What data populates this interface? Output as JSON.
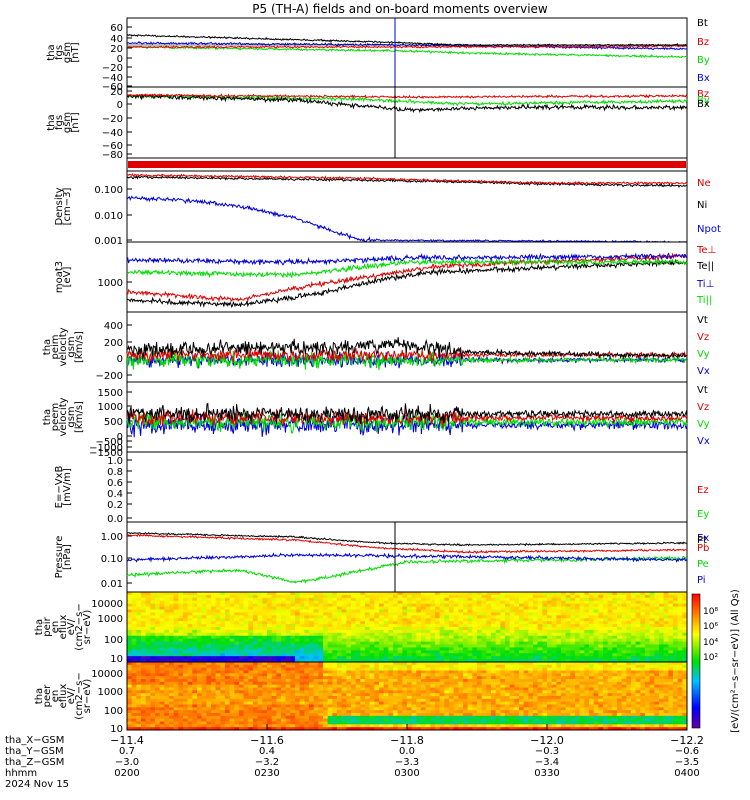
{
  "title": "P5 (TH-A) fields and on-board moments overview",
  "colors": {
    "black": "#000000",
    "red": "#e00000",
    "green": "#00dd00",
    "blue": "#0000dd"
  },
  "panels": [
    {
      "ylabel": [
        "tha",
        "fgs",
        "gsm",
        "[nT]"
      ],
      "ticks": [
        "60",
        "40",
        "20",
        "0",
        "−20",
        "−40",
        "−60"
      ],
      "legend": [
        "Bt",
        "Bz",
        "By",
        "Bx"
      ]
    },
    {
      "ylabel": [
        "tha",
        "fgs",
        "gsm",
        "[nT]"
      ],
      "ticks": [
        "20",
        "0",
        "−20",
        "−40",
        "−60",
        "−80"
      ],
      "legend": [
        "Bz",
        "By",
        "Bx"
      ]
    },
    {
      "ylabel": [],
      "ticks": [],
      "legend": []
    },
    {
      "ylabel": [
        "Density",
        "[cm−3]"
      ],
      "ticks": [
        "0.100",
        "0.010",
        "0.001"
      ],
      "legend": [
        "Ne",
        "Ni",
        "Npot"
      ]
    },
    {
      "ylabel": [
        "moat3",
        "[eV]"
      ],
      "ticks": [
        "1000"
      ],
      "legend": [
        "Te⊥",
        "Te||",
        "Ti⊥",
        "Ti||"
      ]
    },
    {
      "ylabel": [
        "tha",
        "peim",
        "velocity",
        "gsm",
        "[km/s]"
      ],
      "ticks": [
        "400",
        "200",
        "0",
        "−200"
      ],
      "legend": [
        "Vt",
        "Vz",
        "Vy",
        "Vx"
      ]
    },
    {
      "ylabel": [
        "tha",
        "peem",
        "velocity",
        "gsm",
        "[km/s]"
      ],
      "ticks": [
        "1500",
        "1000",
        "500",
        "0",
        "−500",
        "−1000",
        "−1500"
      ],
      "legend": [
        "Vt",
        "Vz",
        "Vy",
        "Vx"
      ]
    },
    {
      "ylabel": [
        "E=−VxB",
        "[mV/m]"
      ],
      "ticks": [
        "1.0",
        "0.8",
        "0.6",
        "0.4",
        "0.2",
        "0.0"
      ],
      "legend": [
        "Ez",
        "Ey",
        "Ex"
      ]
    },
    {
      "ylabel": [
        "Pressure",
        "[nPa]"
      ],
      "ticks": [
        "1.00",
        "0.10",
        "0.01"
      ],
      "legend": [
        "Pt",
        "Pb",
        "Pe",
        "Pi"
      ]
    },
    {
      "ylabel": [
        "tha",
        "peir",
        "en",
        "eflux",
        "eV/",
        "(cm2−s−",
        "sr−eV)"
      ],
      "ticks": [
        "10000",
        "1000",
        "100",
        "10"
      ],
      "legend": []
    },
    {
      "ylabel": [
        "tha",
        "peer",
        "en",
        "eflux",
        "eV/",
        "(cm2−s−",
        "sr−eV)"
      ],
      "ticks": [
        "10000",
        "1000",
        "100",
        "10"
      ],
      "legend": []
    }
  ],
  "colorbar": {
    "label": "[eV/(cm²−s−sr−eV)] (All Qs)",
    "ticks": [
      "10⁸",
      "10⁶",
      "10⁴",
      "10²"
    ]
  },
  "xaxis": {
    "ticks": [
      "−11.4",
      "−11.6",
      "−11.8",
      "−12.0",
      "−12.2"
    ],
    "rows": [
      {
        "label": "tha_X−GSM",
        "values": [
          "−11.4",
          "−11.6",
          "−11.8",
          "−12.0",
          "−12.2"
        ]
      },
      {
        "label": "tha_Y−GSM",
        "values": [
          "0.7",
          "0.4",
          "0.0",
          "−0.3",
          "−0.6"
        ]
      },
      {
        "label": "tha_Z−GSM",
        "values": [
          "−3.0",
          "−3.2",
          "−3.3",
          "−3.4",
          "−3.5"
        ]
      },
      {
        "label": "hhmm",
        "values": [
          "0200",
          "0230",
          "0300",
          "0330",
          "0400"
        ]
      }
    ],
    "date": "2024 Nov 15"
  },
  "chart_data": [
    {
      "type": "line",
      "title": "P5 (TH-A) fields and on-board moments overview",
      "ylabel": "tha fgs gsm [nT]",
      "ylim": [
        -60,
        60
      ],
      "x": [
        "0200",
        "0230",
        "0300",
        "0330",
        "0400"
      ],
      "series": [
        {
          "name": "Bt",
          "values": [
            38,
            33,
            24,
            23,
            22
          ]
        },
        {
          "name": "Bz",
          "values": [
            22,
            22,
            20,
            22,
            22
          ]
        },
        {
          "name": "By",
          "values": [
            18,
            16,
            10,
            6,
            3
          ]
        },
        {
          "name": "Bx",
          "values": [
            30,
            26,
            20,
            22,
            22
          ]
        }
      ]
    },
    {
      "type": "line",
      "ylabel": "tha fgs gsm [nT]",
      "ylim": [
        -90,
        25
      ],
      "x": [
        "0200",
        "0230",
        "0300",
        "0330",
        "0400"
      ],
      "series": [
        {
          "name": "Bz",
          "values": [
            18,
            15,
            12,
            18,
            16
          ]
        },
        {
          "name": "By",
          "values": [
            10,
            5,
            -2,
            3,
            2
          ]
        },
        {
          "name": "Bx",
          "values": [
            16,
            8,
            -15,
            -5,
            -8
          ]
        }
      ]
    },
    {
      "type": "line",
      "ylabel": "Density [cm−3]",
      "scale": "log",
      "ylim": [
        0.001,
        0.2
      ],
      "x": [
        "0200",
        "0230",
        "0300",
        "0330",
        "0400"
      ],
      "series": [
        {
          "name": "Ne",
          "values": [
            0.18,
            0.15,
            0.13,
            0.13,
            0.12
          ]
        },
        {
          "name": "Ni",
          "values": [
            0.18,
            0.15,
            0.13,
            0.12,
            0.12
          ]
        },
        {
          "name": "Npot",
          "values": [
            0.03,
            0.02,
            0.001,
            0.0008,
            0.0008
          ]
        }
      ]
    },
    {
      "type": "line",
      "ylabel": "moat3 [eV]",
      "scale": "log",
      "x": [
        "0200",
        "0230",
        "0300",
        "0330",
        "0400"
      ],
      "series": [
        {
          "name": "Te⊥",
          "values": [
            600,
            700,
            2000,
            3000,
            3000
          ]
        },
        {
          "name": "Te||",
          "values": [
            450,
            500,
            1800,
            2800,
            2800
          ]
        },
        {
          "name": "Ti⊥",
          "values": [
            3000,
            3200,
            3000,
            2600,
            2600
          ]
        },
        {
          "name": "Ti||",
          "values": [
            2000,
            2000,
            2500,
            2400,
            2400
          ]
        }
      ]
    },
    {
      "type": "line",
      "ylabel": "tha peim velocity gsm [km/s]",
      "ylim": [
        -200,
        550
      ],
      "x": [
        "0200",
        "0230",
        "0300",
        "0330",
        "0400"
      ],
      "series": [
        {
          "name": "Vt",
          "values": [
            150,
            250,
            150,
            50,
            30
          ]
        },
        {
          "name": "Vz",
          "values": [
            50,
            80,
            20,
            0,
            0
          ]
        },
        {
          "name": "Vy",
          "values": [
            30,
            0,
            -30,
            -20,
            -20
          ]
        },
        {
          "name": "Vx",
          "values": [
            20,
            30,
            10,
            0,
            0
          ]
        }
      ]
    },
    {
      "type": "line",
      "ylabel": "tha peem velocity gsm [km/s]",
      "ylim": [
        -1500,
        1500
      ],
      "x": [
        "0200",
        "0230",
        "0300",
        "0330",
        "0400"
      ],
      "series": [
        {
          "name": "Vt",
          "values": [
            300,
            400,
            300,
            100,
            100
          ]
        },
        {
          "name": "Vz",
          "values": [
            100,
            150,
            100,
            0,
            0
          ]
        },
        {
          "name": "Vy",
          "values": [
            -100,
            -200,
            -100,
            -50,
            -50
          ]
        },
        {
          "name": "Vx",
          "values": [
            -200,
            -300,
            -200,
            -100,
            -100
          ]
        }
      ]
    },
    {
      "type": "line",
      "ylabel": "E=−VxB [mV/m]",
      "ylim": [
        0,
        1
      ],
      "series": []
    },
    {
      "type": "line",
      "ylabel": "Pressure [nPa]",
      "scale": "log",
      "ylim": [
        0.005,
        1.5
      ],
      "x": [
        "0200",
        "0230",
        "0300",
        "0330",
        "0400"
      ],
      "series": [
        {
          "name": "Pt",
          "values": [
            1.0,
            0.75,
            0.3,
            0.2,
            0.2
          ]
        },
        {
          "name": "Pb",
          "values": [
            0.8,
            0.55,
            0.15,
            0.18,
            0.18
          ]
        },
        {
          "name": "Pe",
          "values": [
            0.02,
            0.03,
            0.08,
            0.08,
            0.08
          ]
        },
        {
          "name": "Pi",
          "values": [
            0.15,
            0.14,
            0.12,
            0.1,
            0.09
          ]
        }
      ]
    },
    {
      "type": "heatmap",
      "ylabel": "tha peir en eflux",
      "scale": "log",
      "ylim": [
        5,
        20000
      ]
    },
    {
      "type": "heatmap",
      "ylabel": "tha peer en eflux",
      "scale": "log",
      "ylim": [
        5,
        20000
      ]
    }
  ]
}
